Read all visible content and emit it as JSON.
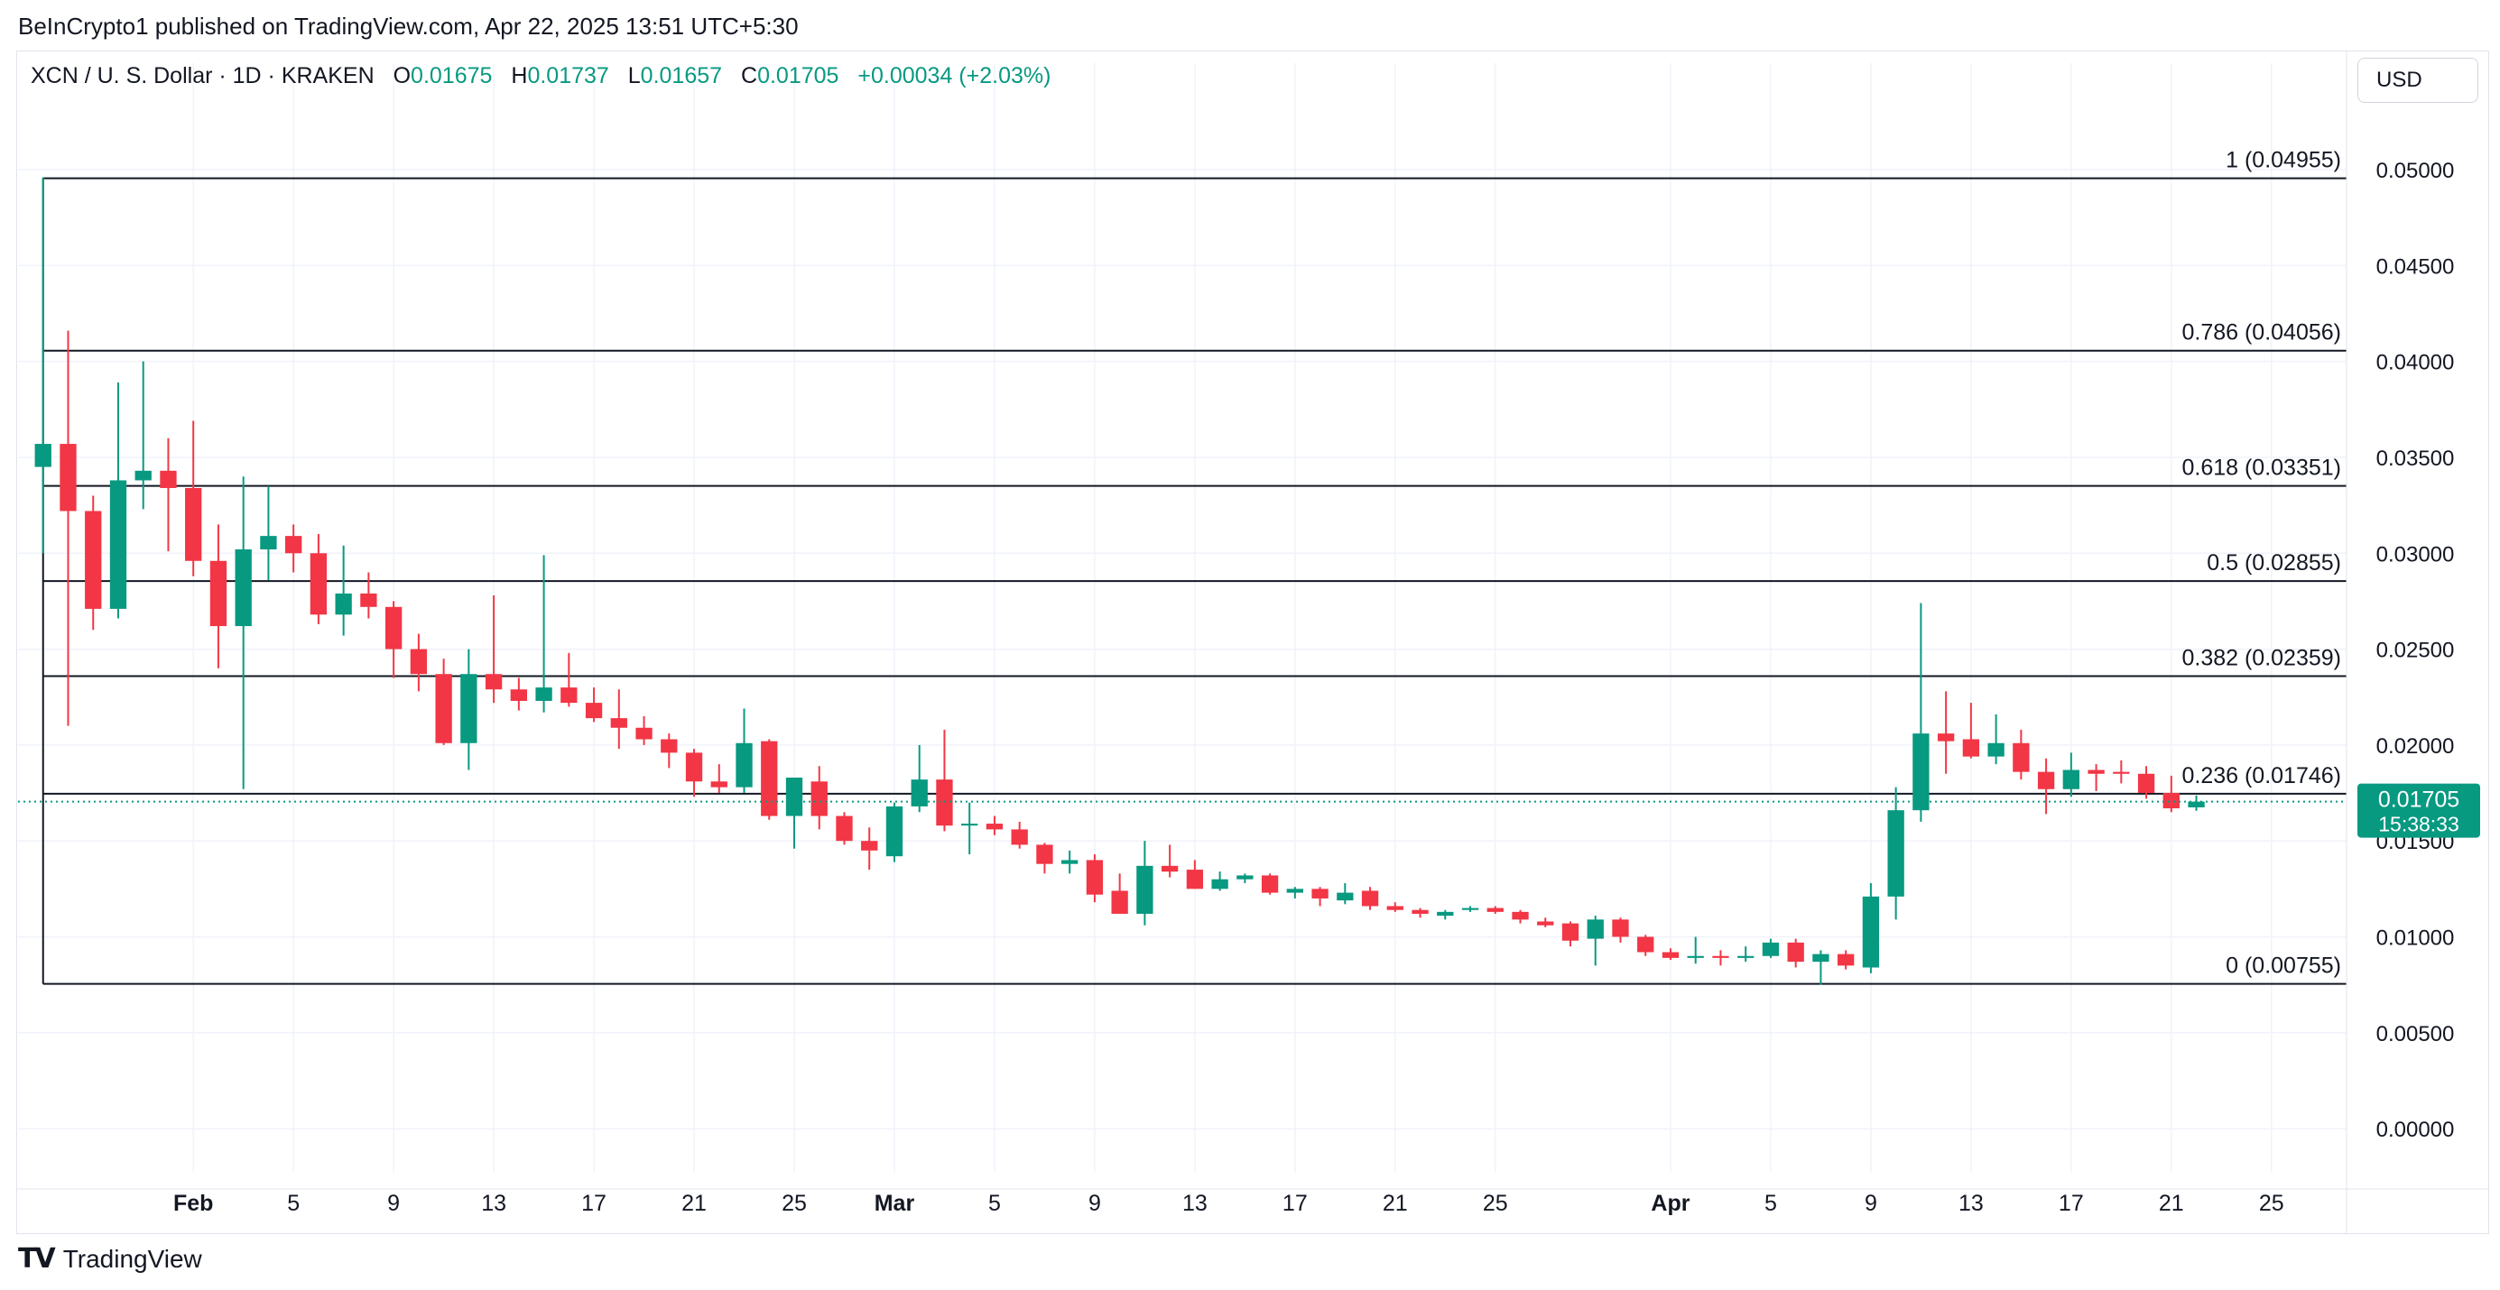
{
  "header": {
    "published_text": "BeInCrypto1 published on TradingView.com, Apr 22, 2025 13:51 UTC+5:30"
  },
  "legend": {
    "symbol": "XCN / U. S. Dollar · 1D · KRAKEN",
    "open_label": "O",
    "open_value": "0.01675",
    "high_label": "H",
    "high_value": "0.01737",
    "low_label": "L",
    "low_value": "0.01657",
    "close_label": "C",
    "close_value": "0.01705",
    "change": "+0.00034 (+2.03%)"
  },
  "currency_button": "USD",
  "price_badge": {
    "price": "0.01705",
    "countdown": "15:38:33"
  },
  "footer": {
    "brand": "TradingView",
    "logo_icon": "tradingview-logo-icon"
  },
  "colors": {
    "up": "#089981",
    "down": "#f23645",
    "fib_line": "#131722",
    "grid": "#f0f3fa"
  },
  "chart_data": {
    "type": "candlestick",
    "title": "",
    "xlabel": "",
    "ylabel": "",
    "ylim": [
      -0.0023,
      0.0532
    ],
    "y_ticks": [
      "0.05000",
      "0.04500",
      "0.04000",
      "0.03500",
      "0.03000",
      "0.02500",
      "0.02000",
      "0.01500",
      "0.01000",
      "0.00500",
      "0.00000"
    ],
    "x_ticks": [
      {
        "label": "Feb",
        "date": "2025-02-01",
        "bold": true
      },
      {
        "label": "5",
        "date": "2025-02-05"
      },
      {
        "label": "9",
        "date": "2025-02-09"
      },
      {
        "label": "13",
        "date": "2025-02-13"
      },
      {
        "label": "17",
        "date": "2025-02-17"
      },
      {
        "label": "21",
        "date": "2025-02-21"
      },
      {
        "label": "25",
        "date": "2025-02-25"
      },
      {
        "label": "Mar",
        "date": "2025-03-01",
        "bold": true
      },
      {
        "label": "5",
        "date": "2025-03-05"
      },
      {
        "label": "9",
        "date": "2025-03-09"
      },
      {
        "label": "13",
        "date": "2025-03-13"
      },
      {
        "label": "17",
        "date": "2025-03-17"
      },
      {
        "label": "21",
        "date": "2025-03-21"
      },
      {
        "label": "25",
        "date": "2025-03-25"
      },
      {
        "label": "Apr",
        "date": "2025-04-01",
        "bold": true
      },
      {
        "label": "5",
        "date": "2025-04-05"
      },
      {
        "label": "9",
        "date": "2025-04-09"
      },
      {
        "label": "13",
        "date": "2025-04-13"
      },
      {
        "label": "17",
        "date": "2025-04-17"
      },
      {
        "label": "21",
        "date": "2025-04-21"
      },
      {
        "label": "25",
        "date": "2025-04-25"
      }
    ],
    "x_range": [
      "2025-01-25",
      "2025-04-28"
    ],
    "fib_levels": [
      {
        "label": "1 (0.04955)",
        "value": 0.04955
      },
      {
        "label": "0.786 (0.04056)",
        "value": 0.04056
      },
      {
        "label": "0.618 (0.03351)",
        "value": 0.03351
      },
      {
        "label": "0.5 (0.02855)",
        "value": 0.02855
      },
      {
        "label": "0.382 (0.02359)",
        "value": 0.02359
      },
      {
        "label": "0.236 (0.01746)",
        "value": 0.01746
      },
      {
        "label": "0 (0.00755)",
        "value": 0.00755
      }
    ],
    "last_price": 0.01705,
    "candles": [
      {
        "date": "2025-01-26",
        "o": 0.0345,
        "h": 0.0496,
        "l": 0.03,
        "c": 0.0357
      },
      {
        "date": "2025-01-27",
        "o": 0.0357,
        "h": 0.0416,
        "l": 0.021,
        "c": 0.0322
      },
      {
        "date": "2025-01-28",
        "o": 0.0322,
        "h": 0.033,
        "l": 0.026,
        "c": 0.0271
      },
      {
        "date": "2025-01-29",
        "o": 0.0271,
        "h": 0.0389,
        "l": 0.0266,
        "c": 0.0338
      },
      {
        "date": "2025-01-30",
        "o": 0.0338,
        "h": 0.04,
        "l": 0.0323,
        "c": 0.0343
      },
      {
        "date": "2025-01-31",
        "o": 0.0343,
        "h": 0.036,
        "l": 0.0301,
        "c": 0.0334
      },
      {
        "date": "2025-02-01",
        "o": 0.0334,
        "h": 0.0369,
        "l": 0.0288,
        "c": 0.0296
      },
      {
        "date": "2025-02-02",
        "o": 0.0296,
        "h": 0.0315,
        "l": 0.024,
        "c": 0.0262
      },
      {
        "date": "2025-02-03",
        "o": 0.0262,
        "h": 0.034,
        "l": 0.0177,
        "c": 0.0302
      },
      {
        "date": "2025-02-04",
        "o": 0.0302,
        "h": 0.0335,
        "l": 0.0286,
        "c": 0.0309
      },
      {
        "date": "2025-02-05",
        "o": 0.0309,
        "h": 0.0315,
        "l": 0.029,
        "c": 0.03
      },
      {
        "date": "2025-02-06",
        "o": 0.03,
        "h": 0.031,
        "l": 0.0263,
        "c": 0.0268
      },
      {
        "date": "2025-02-07",
        "o": 0.0268,
        "h": 0.0304,
        "l": 0.0257,
        "c": 0.0279
      },
      {
        "date": "2025-02-08",
        "o": 0.0279,
        "h": 0.029,
        "l": 0.0266,
        "c": 0.0272
      },
      {
        "date": "2025-02-09",
        "o": 0.0272,
        "h": 0.0275,
        "l": 0.0235,
        "c": 0.025
      },
      {
        "date": "2025-02-10",
        "o": 0.025,
        "h": 0.0258,
        "l": 0.0228,
        "c": 0.0237
      },
      {
        "date": "2025-02-11",
        "o": 0.0237,
        "h": 0.0245,
        "l": 0.02,
        "c": 0.0201
      },
      {
        "date": "2025-02-12",
        "o": 0.0201,
        "h": 0.025,
        "l": 0.0187,
        "c": 0.0237
      },
      {
        "date": "2025-02-13",
        "o": 0.0237,
        "h": 0.0278,
        "l": 0.0222,
        "c": 0.0229
      },
      {
        "date": "2025-02-14",
        "o": 0.0229,
        "h": 0.0235,
        "l": 0.0218,
        "c": 0.0223
      },
      {
        "date": "2025-02-15",
        "o": 0.0223,
        "h": 0.0299,
        "l": 0.0217,
        "c": 0.023
      },
      {
        "date": "2025-02-16",
        "o": 0.023,
        "h": 0.0248,
        "l": 0.022,
        "c": 0.0222
      },
      {
        "date": "2025-02-17",
        "o": 0.0222,
        "h": 0.023,
        "l": 0.0212,
        "c": 0.0214
      },
      {
        "date": "2025-02-18",
        "o": 0.0214,
        "h": 0.0229,
        "l": 0.0198,
        "c": 0.0209
      },
      {
        "date": "2025-02-19",
        "o": 0.0209,
        "h": 0.0215,
        "l": 0.02,
        "c": 0.0203
      },
      {
        "date": "2025-02-20",
        "o": 0.0203,
        "h": 0.0206,
        "l": 0.0188,
        "c": 0.0196
      },
      {
        "date": "2025-02-21",
        "o": 0.0196,
        "h": 0.0198,
        "l": 0.0173,
        "c": 0.0181
      },
      {
        "date": "2025-02-22",
        "o": 0.0181,
        "h": 0.019,
        "l": 0.0175,
        "c": 0.0178
      },
      {
        "date": "2025-02-23",
        "o": 0.0178,
        "h": 0.0219,
        "l": 0.0175,
        "c": 0.0201
      },
      {
        "date": "2025-02-24",
        "o": 0.0202,
        "h": 0.0203,
        "l": 0.0161,
        "c": 0.0163
      },
      {
        "date": "2025-02-25",
        "o": 0.0163,
        "h": 0.0182,
        "l": 0.0146,
        "c": 0.0183
      },
      {
        "date": "2025-02-26",
        "o": 0.0181,
        "h": 0.0189,
        "l": 0.0156,
        "c": 0.0163
      },
      {
        "date": "2025-02-27",
        "o": 0.0163,
        "h": 0.0165,
        "l": 0.0148,
        "c": 0.015
      },
      {
        "date": "2025-02-28",
        "o": 0.015,
        "h": 0.0157,
        "l": 0.0135,
        "c": 0.0145
      },
      {
        "date": "2025-03-01",
        "o": 0.0142,
        "h": 0.017,
        "l": 0.0139,
        "c": 0.0168
      },
      {
        "date": "2025-03-02",
        "o": 0.0168,
        "h": 0.02,
        "l": 0.0165,
        "c": 0.0182
      },
      {
        "date": "2025-03-03",
        "o": 0.0182,
        "h": 0.0208,
        "l": 0.0155,
        "c": 0.0158
      },
      {
        "date": "2025-03-04",
        "o": 0.0158,
        "h": 0.017,
        "l": 0.0143,
        "c": 0.0159
      },
      {
        "date": "2025-03-05",
        "o": 0.0159,
        "h": 0.0163,
        "l": 0.0153,
        "c": 0.0156
      },
      {
        "date": "2025-03-06",
        "o": 0.0156,
        "h": 0.016,
        "l": 0.0146,
        "c": 0.0148
      },
      {
        "date": "2025-03-07",
        "o": 0.0148,
        "h": 0.0149,
        "l": 0.0133,
        "c": 0.0138
      },
      {
        "date": "2025-03-08",
        "o": 0.0138,
        "h": 0.0145,
        "l": 0.0133,
        "c": 0.014
      },
      {
        "date": "2025-03-09",
        "o": 0.014,
        "h": 0.0143,
        "l": 0.0118,
        "c": 0.0122
      },
      {
        "date": "2025-03-10",
        "o": 0.0124,
        "h": 0.0133,
        "l": 0.0112,
        "c": 0.0112
      },
      {
        "date": "2025-03-11",
        "o": 0.0112,
        "h": 0.015,
        "l": 0.0106,
        "c": 0.0137
      },
      {
        "date": "2025-03-12",
        "o": 0.0137,
        "h": 0.0148,
        "l": 0.0131,
        "c": 0.0134
      },
      {
        "date": "2025-03-13",
        "o": 0.0135,
        "h": 0.014,
        "l": 0.0125,
        "c": 0.0125
      },
      {
        "date": "2025-03-14",
        "o": 0.0125,
        "h": 0.0134,
        "l": 0.0124,
        "c": 0.013
      },
      {
        "date": "2025-03-15",
        "o": 0.013,
        "h": 0.0133,
        "l": 0.0128,
        "c": 0.0132
      },
      {
        "date": "2025-03-16",
        "o": 0.0132,
        "h": 0.0133,
        "l": 0.0122,
        "c": 0.0123
      },
      {
        "date": "2025-03-17",
        "o": 0.0123,
        "h": 0.0126,
        "l": 0.012,
        "c": 0.0125
      },
      {
        "date": "2025-03-18",
        "o": 0.0125,
        "h": 0.0126,
        "l": 0.0116,
        "c": 0.012
      },
      {
        "date": "2025-03-19",
        "o": 0.0119,
        "h": 0.0128,
        "l": 0.0117,
        "c": 0.0123
      },
      {
        "date": "2025-03-20",
        "o": 0.0124,
        "h": 0.0126,
        "l": 0.0114,
        "c": 0.0116
      },
      {
        "date": "2025-03-21",
        "o": 0.0116,
        "h": 0.0118,
        "l": 0.0113,
        "c": 0.0114
      },
      {
        "date": "2025-03-22",
        "o": 0.0114,
        "h": 0.0115,
        "l": 0.011,
        "c": 0.0112
      },
      {
        "date": "2025-03-23",
        "o": 0.0111,
        "h": 0.0114,
        "l": 0.0109,
        "c": 0.0113
      },
      {
        "date": "2025-03-24",
        "o": 0.0114,
        "h": 0.0116,
        "l": 0.0113,
        "c": 0.0115
      },
      {
        "date": "2025-03-25",
        "o": 0.0115,
        "h": 0.0116,
        "l": 0.0112,
        "c": 0.0113
      },
      {
        "date": "2025-03-26",
        "o": 0.0113,
        "h": 0.0114,
        "l": 0.0107,
        "c": 0.0109
      },
      {
        "date": "2025-03-27",
        "o": 0.0108,
        "h": 0.011,
        "l": 0.0105,
        "c": 0.0106
      },
      {
        "date": "2025-03-28",
        "o": 0.0107,
        "h": 0.0108,
        "l": 0.0095,
        "c": 0.0098
      },
      {
        "date": "2025-03-29",
        "o": 0.0099,
        "h": 0.0111,
        "l": 0.0085,
        "c": 0.0109
      },
      {
        "date": "2025-03-30",
        "o": 0.0109,
        "h": 0.011,
        "l": 0.0097,
        "c": 0.01
      },
      {
        "date": "2025-03-31",
        "o": 0.01,
        "h": 0.0101,
        "l": 0.009,
        "c": 0.0092
      },
      {
        "date": "2025-04-01",
        "o": 0.0092,
        "h": 0.0094,
        "l": 0.0088,
        "c": 0.0089
      },
      {
        "date": "2025-04-02",
        "o": 0.0089,
        "h": 0.01,
        "l": 0.0086,
        "c": 0.009
      },
      {
        "date": "2025-04-03",
        "o": 0.009,
        "h": 0.0093,
        "l": 0.0085,
        "c": 0.0089
      },
      {
        "date": "2025-04-04",
        "o": 0.0089,
        "h": 0.0095,
        "l": 0.0087,
        "c": 0.009
      },
      {
        "date": "2025-04-05",
        "o": 0.009,
        "h": 0.0099,
        "l": 0.0089,
        "c": 0.0097
      },
      {
        "date": "2025-04-06",
        "o": 0.0097,
        "h": 0.0099,
        "l": 0.0084,
        "c": 0.0087
      },
      {
        "date": "2025-04-07",
        "o": 0.0087,
        "h": 0.0093,
        "l": 0.0075,
        "c": 0.0091
      },
      {
        "date": "2025-04-08",
        "o": 0.0091,
        "h": 0.0093,
        "l": 0.0083,
        "c": 0.0085
      },
      {
        "date": "2025-04-09",
        "o": 0.0084,
        "h": 0.0128,
        "l": 0.0081,
        "c": 0.0121
      },
      {
        "date": "2025-04-10",
        "o": 0.0121,
        "h": 0.0178,
        "l": 0.0109,
        "c": 0.0166
      },
      {
        "date": "2025-04-11",
        "o": 0.0166,
        "h": 0.0274,
        "l": 0.016,
        "c": 0.0206
      },
      {
        "date": "2025-04-12",
        "o": 0.0206,
        "h": 0.0228,
        "l": 0.0185,
        "c": 0.0202
      },
      {
        "date": "2025-04-13",
        "o": 0.0203,
        "h": 0.0222,
        "l": 0.0193,
        "c": 0.0194
      },
      {
        "date": "2025-04-14",
        "o": 0.0194,
        "h": 0.0216,
        "l": 0.019,
        "c": 0.0201
      },
      {
        "date": "2025-04-15",
        "o": 0.0201,
        "h": 0.0208,
        "l": 0.0182,
        "c": 0.0186
      },
      {
        "date": "2025-04-16",
        "o": 0.0186,
        "h": 0.0193,
        "l": 0.0164,
        "c": 0.0177
      },
      {
        "date": "2025-04-17",
        "o": 0.0177,
        "h": 0.0196,
        "l": 0.0173,
        "c": 0.0187
      },
      {
        "date": "2025-04-18",
        "o": 0.0187,
        "h": 0.019,
        "l": 0.0176,
        "c": 0.0185
      },
      {
        "date": "2025-04-19",
        "o": 0.0186,
        "h": 0.0192,
        "l": 0.018,
        "c": 0.0185
      },
      {
        "date": "2025-04-20",
        "o": 0.0185,
        "h": 0.0189,
        "l": 0.0172,
        "c": 0.0175
      },
      {
        "date": "2025-04-21",
        "o": 0.0175,
        "h": 0.0184,
        "l": 0.0165,
        "c": 0.0167
      },
      {
        "date": "2025-04-22",
        "o": 0.01675,
        "h": 0.01737,
        "l": 0.01657,
        "c": 0.01705
      }
    ]
  }
}
